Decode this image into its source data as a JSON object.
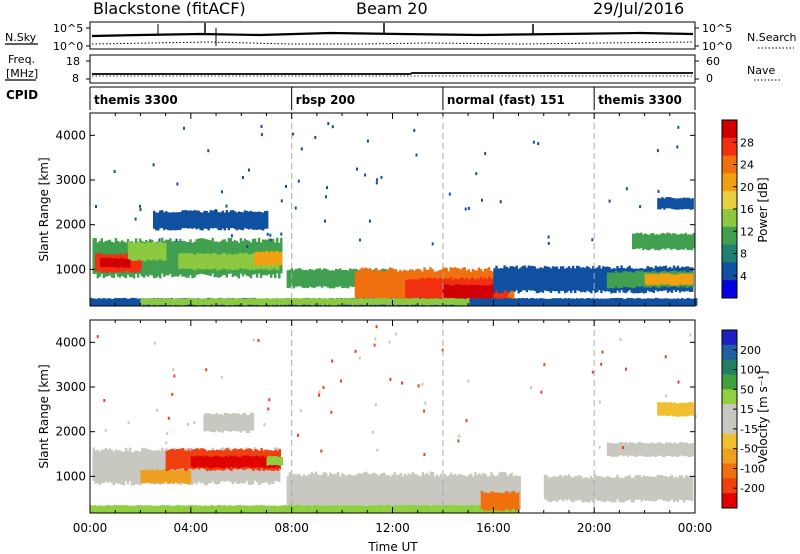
{
  "header": {
    "radar": "Blackstone (fitACF)",
    "beam": "Beam 20",
    "date": "29/Jul/2016"
  },
  "top_panels": {
    "nsky_label": "N.Sky",
    "nsearch_label": "N.Search",
    "freq_label_1": "Freq.",
    "freq_label_2": "[MHz]",
    "nave_label": "Nave",
    "cpid_label": "CPID",
    "noise_left_ticks": [
      "10^5",
      "10^0"
    ],
    "noise_right_ticks": [
      "10^5",
      "10^0"
    ],
    "freq_left_ticks": [
      "18",
      "8"
    ],
    "freq_right_ticks": [
      "60",
      "0"
    ],
    "cpid_modes": [
      {
        "name": "themis 3300",
        "start": 0
      },
      {
        "name": "rbsp 200",
        "start": 8
      },
      {
        "name": "normal (fast) 151",
        "start": 14
      },
      {
        "name": "themis 3300",
        "start": 20
      }
    ]
  },
  "colorbars": {
    "power": {
      "label": "Power [dB]",
      "ticks": [
        "28",
        "24",
        "20",
        "16",
        "12",
        "8",
        "4"
      ],
      "colors": [
        "#d00000",
        "#f03010",
        "#f07010",
        "#f0a010",
        "#e8d040",
        "#8cc840",
        "#40a050",
        "#208070",
        "#1050a0",
        "#0000e0"
      ]
    },
    "velocity": {
      "label": "Velocity [m s⁻¹]",
      "ticks": [
        "200",
        "100",
        "50",
        "15",
        "-15",
        "-50",
        "-100",
        "-200"
      ],
      "colors": [
        "#2020c0",
        "#2060a0",
        "#208060",
        "#40a040",
        "#90d040",
        "#c8c8c0",
        "#c8c8c0",
        "#f0c030",
        "#f0a020",
        "#f07010",
        "#f04010",
        "#e00000"
      ]
    }
  },
  "chart_data": [
    {
      "type": "heatmap",
      "name": "power",
      "ylabel": "Slant Range [km]",
      "xlabel": "Time UT",
      "x_range_hours": [
        0,
        24
      ],
      "ylim": [
        180,
        4500
      ],
      "y_ticks": [
        1000,
        2000,
        3000,
        4000
      ],
      "x_ticks": [
        "00:00",
        "04:00",
        "08:00",
        "12:00",
        "16:00",
        "20:00",
        "00:00"
      ],
      "bands": [
        {
          "t0": 0.1,
          "t1": 7.6,
          "lo": 850,
          "hi": 1650,
          "color": "#40a050"
        },
        {
          "t0": 0.2,
          "t1": 2.0,
          "lo": 950,
          "hi": 1350,
          "color": "#f03010"
        },
        {
          "t0": 0.4,
          "t1": 1.6,
          "lo": 1050,
          "hi": 1250,
          "color": "#d00000"
        },
        {
          "t0": 1.5,
          "t1": 3.0,
          "lo": 1200,
          "hi": 1600,
          "color": "#8cc840"
        },
        {
          "t0": 3.5,
          "t1": 7.5,
          "lo": 1000,
          "hi": 1350,
          "color": "#8cc840"
        },
        {
          "t0": 6.5,
          "t1": 7.6,
          "lo": 1100,
          "hi": 1400,
          "color": "#f0a010"
        },
        {
          "t0": 7.8,
          "t1": 12.0,
          "lo": 600,
          "hi": 1000,
          "color": "#40a050"
        },
        {
          "t0": 10.5,
          "t1": 16.8,
          "lo": 300,
          "hi": 1000,
          "color": "#f07010"
        },
        {
          "t0": 12.5,
          "t1": 16.5,
          "lo": 300,
          "hi": 800,
          "color": "#f03010"
        },
        {
          "t0": 14.0,
          "t1": 16.0,
          "lo": 350,
          "hi": 650,
          "color": "#d00000"
        },
        {
          "t0": 0.0,
          "t1": 24.0,
          "lo": 180,
          "hi": 350,
          "color": "#1050a0"
        },
        {
          "t0": 2.0,
          "t1": 15.0,
          "lo": 200,
          "hi": 350,
          "color": "#8cc840"
        },
        {
          "t0": 16.0,
          "t1": 23.9,
          "lo": 500,
          "hi": 1050,
          "color": "#1050a0"
        },
        {
          "t0": 20.5,
          "t1": 23.9,
          "lo": 600,
          "hi": 950,
          "color": "#40a050"
        },
        {
          "t0": 22.0,
          "t1": 23.9,
          "lo": 650,
          "hi": 900,
          "color": "#f0a010"
        },
        {
          "t0": 21.5,
          "t1": 23.9,
          "lo": 1450,
          "hi": 1800,
          "color": "#40a050"
        },
        {
          "t0": 22.5,
          "t1": 23.9,
          "lo": 2350,
          "hi": 2600,
          "color": "#1050a0"
        },
        {
          "t0": 2.5,
          "t1": 7.0,
          "lo": 1900,
          "hi": 2300,
          "color": "#1050a0"
        }
      ]
    },
    {
      "type": "heatmap",
      "name": "velocity",
      "ylabel": "Slant Range [km]",
      "xlabel": "Time UT",
      "x_range_hours": [
        0,
        24
      ],
      "ylim": [
        180,
        4500
      ],
      "y_ticks": [
        1000,
        2000,
        3000,
        4000
      ],
      "x_ticks": [
        "00:00",
        "04:00",
        "08:00",
        "12:00",
        "16:00",
        "20:00",
        "00:00"
      ],
      "bands": [
        {
          "t0": 0.1,
          "t1": 7.5,
          "lo": 850,
          "hi": 1600,
          "color": "#c8c8c0"
        },
        {
          "t0": 2.0,
          "t1": 4.0,
          "lo": 850,
          "hi": 1150,
          "color": "#f0a020"
        },
        {
          "t0": 3.0,
          "t1": 7.5,
          "lo": 1150,
          "hi": 1600,
          "color": "#f04010"
        },
        {
          "t0": 4.0,
          "t1": 7.5,
          "lo": 1200,
          "hi": 1450,
          "color": "#e00000"
        },
        {
          "t0": 7.0,
          "t1": 7.6,
          "lo": 1250,
          "hi": 1450,
          "color": "#90d040"
        },
        {
          "t0": 7.8,
          "t1": 17.0,
          "lo": 300,
          "hi": 1050,
          "color": "#c8c8c0"
        },
        {
          "t0": 0.0,
          "t1": 17.0,
          "lo": 180,
          "hi": 350,
          "color": "#90d040"
        },
        {
          "t0": 15.5,
          "t1": 17.0,
          "lo": 250,
          "hi": 650,
          "color": "#f07010"
        },
        {
          "t0": 18.0,
          "t1": 23.9,
          "lo": 450,
          "hi": 1000,
          "color": "#c8c8c0"
        },
        {
          "t0": 20.5,
          "t1": 23.9,
          "lo": 1450,
          "hi": 1750,
          "color": "#c8c8c0"
        },
        {
          "t0": 22.5,
          "t1": 23.9,
          "lo": 2350,
          "hi": 2650,
          "color": "#f0c030"
        },
        {
          "t0": 4.5,
          "t1": 6.5,
          "lo": 2000,
          "hi": 2400,
          "color": "#c8c8c0"
        }
      ]
    }
  ]
}
